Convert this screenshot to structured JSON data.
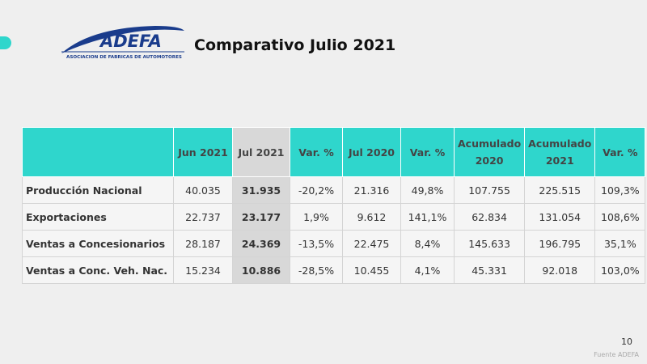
{
  "logo": {
    "brand": "ADEFA",
    "subtitle": "ASOCIACION DE FABRICAS DE AUTOMOTORES"
  },
  "title": "Comparativo Julio 2021",
  "table": {
    "header": [
      "",
      "Jun 2021",
      "Jul 2021",
      "Var. %",
      "Jul 2020",
      "Var. %",
      "Acumulado 2020",
      "Acumulado 2021",
      "Var. %"
    ],
    "rows": [
      [
        "Producción Nacional",
        "40.035",
        "31.935",
        "-20,2%",
        "21.316",
        "49,8%",
        "107.755",
        "225.515",
        "109,3%"
      ],
      [
        "Exportaciones",
        "22.737",
        "23.177",
        "1,9%",
        "9.612",
        "141,1%",
        "62.834",
        "131.054",
        "108,6%"
      ],
      [
        "Ventas a Concesionarios",
        "28.187",
        "24.369",
        "-13,5%",
        "22.475",
        "8,4%",
        "145.633",
        "196.795",
        "35,1%"
      ],
      [
        "Ventas a Conc. Veh. Nac.",
        "15.234",
        "10.886",
        "-28,5%",
        "10.455",
        "4,1%",
        "45.331",
        "92.018",
        "103,0%"
      ]
    ]
  },
  "page_number": "10",
  "source": "Fuente ADEFA"
}
